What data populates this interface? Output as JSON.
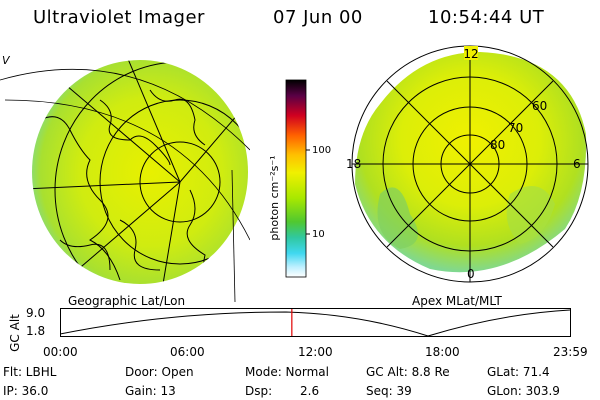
{
  "header": {
    "title": "Ultraviolet Imager",
    "date": "07 Jun 00",
    "time": "10:54:44 UT"
  },
  "left_panel": {
    "caption": "Geographic Lat/Lon",
    "corner_mark": "V"
  },
  "right_panel": {
    "caption": "Apex MLat/MLT",
    "mlt_labels": {
      "top": "12",
      "left": "18",
      "right": "6",
      "bottom": "0"
    },
    "lat_labels": [
      "60",
      "70",
      "80"
    ]
  },
  "colorbar": {
    "label": "photon cm⁻²s⁻¹",
    "ticks": [
      "100",
      "10"
    ],
    "colors": [
      "#000000",
      "#3a003a",
      "#6a0040",
      "#a00025",
      "#d00010",
      "#f03010",
      "#ff7000",
      "#ffb000",
      "#fff000",
      "#d8f000",
      "#a8e800",
      "#78d800",
      "#40c840",
      "#30c8b0",
      "#40d8e8",
      "#a8f0ff",
      "#e8f8ff",
      "#ffffff"
    ]
  },
  "timeline": {
    "ylabel": "GC Alt",
    "yticks": [
      "9.0",
      "1.8"
    ],
    "xticks": [
      "00:00",
      "06:00",
      "12:00",
      "18:00",
      "23:59"
    ],
    "marker_time_hours": 10.91
  },
  "info": {
    "flt": "Flt: LBHL",
    "ip": "IP: 36.0",
    "door": "Door: Open",
    "gain": "Gain: 13",
    "mode": "Mode: Normal",
    "dsp_label": "Dsp:",
    "dsp_value": "2.6",
    "gc_alt": "GC Alt: 8.8 Re",
    "seq": "Seq: 39",
    "glat": "GLat: 71.4",
    "glon": "GLon: 303.9"
  }
}
